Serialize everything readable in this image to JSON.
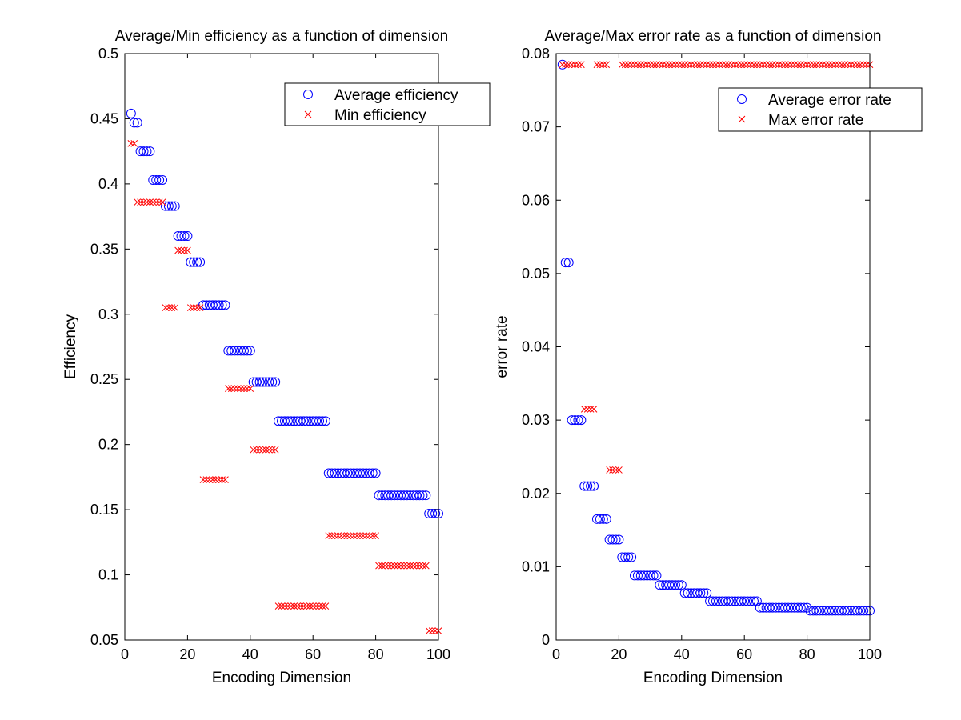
{
  "chart_data": [
    {
      "type": "scatter",
      "title": "Average/Min efficiency as a function of dimension",
      "xlabel": "Encoding Dimension",
      "ylabel": "Efficiency",
      "xlim": [
        0,
        100
      ],
      "ylim": [
        0.05,
        0.5
      ],
      "xticks": [
        0,
        20,
        40,
        60,
        80,
        100
      ],
      "xtick_labels": [
        "0",
        "20",
        "40",
        "60",
        "80",
        "100"
      ],
      "yticks": [
        0.05,
        0.1,
        0.15,
        0.2,
        0.25,
        0.3,
        0.35,
        0.4,
        0.45,
        0.5
      ],
      "ytick_labels": [
        "0.05",
        "0.1",
        "0.15",
        "0.2",
        "0.25",
        "0.3",
        "0.35",
        "0.4",
        "0.45",
        "0.5"
      ],
      "grid": false,
      "legend_position": "top-right",
      "series": [
        {
          "name": "Average efficiency",
          "marker": "circle",
          "color": "#0000ff",
          "x": [
            2,
            3,
            4,
            5,
            6,
            7,
            8,
            9,
            10,
            11,
            12,
            13,
            14,
            15,
            16,
            17,
            18,
            19,
            20,
            21,
            22,
            23,
            24,
            25,
            26,
            27,
            28,
            29,
            30,
            31,
            32,
            33,
            34,
            35,
            36,
            37,
            38,
            39,
            40,
            41,
            42,
            43,
            44,
            45,
            46,
            47,
            48,
            49,
            50,
            51,
            52,
            53,
            54,
            55,
            56,
            57,
            58,
            59,
            60,
            61,
            62,
            63,
            64,
            65,
            66,
            67,
            68,
            69,
            70,
            71,
            72,
            73,
            74,
            75,
            76,
            77,
            78,
            79,
            80,
            81,
            82,
            83,
            84,
            85,
            86,
            87,
            88,
            89,
            90,
            91,
            92,
            93,
            94,
            95,
            96,
            97,
            98,
            99,
            100
          ],
          "y": [
            0.454,
            0.447,
            0.447,
            0.425,
            0.425,
            0.425,
            0.425,
            0.403,
            0.403,
            0.403,
            0.403,
            0.383,
            0.383,
            0.383,
            0.383,
            0.36,
            0.36,
            0.36,
            0.36,
            0.34,
            0.34,
            0.34,
            0.34,
            0.307,
            0.307,
            0.307,
            0.307,
            0.307,
            0.307,
            0.307,
            0.307,
            0.272,
            0.272,
            0.272,
            0.272,
            0.272,
            0.272,
            0.272,
            0.272,
            0.248,
            0.248,
            0.248,
            0.248,
            0.248,
            0.248,
            0.248,
            0.248,
            0.218,
            0.218,
            0.218,
            0.218,
            0.218,
            0.218,
            0.218,
            0.218,
            0.218,
            0.218,
            0.218,
            0.218,
            0.218,
            0.218,
            0.218,
            0.218,
            0.178,
            0.178,
            0.178,
            0.178,
            0.178,
            0.178,
            0.178,
            0.178,
            0.178,
            0.178,
            0.178,
            0.178,
            0.178,
            0.178,
            0.178,
            0.178,
            0.161,
            0.161,
            0.161,
            0.161,
            0.161,
            0.161,
            0.161,
            0.161,
            0.161,
            0.161,
            0.161,
            0.161,
            0.161,
            0.161,
            0.161,
            0.161,
            0.147,
            0.147,
            0.147,
            0.147
          ]
        },
        {
          "name": "Min efficiency",
          "marker": "x",
          "color": "#ff0000",
          "x": [
            2,
            3,
            4,
            5,
            6,
            7,
            8,
            9,
            10,
            11,
            12,
            13,
            14,
            15,
            16,
            17,
            18,
            19,
            20,
            21,
            22,
            23,
            24,
            25,
            26,
            27,
            28,
            29,
            30,
            31,
            32,
            33,
            34,
            35,
            36,
            37,
            38,
            39,
            40,
            41,
            42,
            43,
            44,
            45,
            46,
            47,
            48,
            49,
            50,
            51,
            52,
            53,
            54,
            55,
            56,
            57,
            58,
            59,
            60,
            61,
            62,
            63,
            64,
            65,
            66,
            67,
            68,
            69,
            70,
            71,
            72,
            73,
            74,
            75,
            76,
            77,
            78,
            79,
            80,
            81,
            82,
            83,
            84,
            85,
            86,
            87,
            88,
            89,
            90,
            91,
            92,
            93,
            94,
            95,
            96,
            97,
            98,
            99,
            100
          ],
          "y": [
            0.431,
            0.431,
            0.386,
            0.386,
            0.386,
            0.386,
            0.386,
            0.386,
            0.386,
            0.386,
            0.386,
            0.305,
            0.305,
            0.305,
            0.305,
            0.349,
            0.349,
            0.349,
            0.349,
            0.305,
            0.305,
            0.305,
            0.305,
            0.173,
            0.173,
            0.173,
            0.173,
            0.173,
            0.173,
            0.173,
            0.173,
            0.243,
            0.243,
            0.243,
            0.243,
            0.243,
            0.243,
            0.243,
            0.243,
            0.196,
            0.196,
            0.196,
            0.196,
            0.196,
            0.196,
            0.196,
            0.196,
            0.076,
            0.076,
            0.076,
            0.076,
            0.076,
            0.076,
            0.076,
            0.076,
            0.076,
            0.076,
            0.076,
            0.076,
            0.076,
            0.076,
            0.076,
            0.076,
            0.13,
            0.13,
            0.13,
            0.13,
            0.13,
            0.13,
            0.13,
            0.13,
            0.13,
            0.13,
            0.13,
            0.13,
            0.13,
            0.13,
            0.13,
            0.13,
            0.107,
            0.107,
            0.107,
            0.107,
            0.107,
            0.107,
            0.107,
            0.107,
            0.107,
            0.107,
            0.107,
            0.107,
            0.107,
            0.107,
            0.107,
            0.107,
            0.057,
            0.057,
            0.057,
            0.057
          ]
        }
      ]
    },
    {
      "type": "scatter",
      "title": "Average/Max error rate as a function of dimension",
      "xlabel": "Encoding Dimension",
      "ylabel": "error rate",
      "xlim": [
        0,
        100
      ],
      "ylim": [
        0,
        0.08
      ],
      "xticks": [
        0,
        20,
        40,
        60,
        80,
        100
      ],
      "xtick_labels": [
        "0",
        "20",
        "40",
        "60",
        "80",
        "100"
      ],
      "yticks": [
        0,
        0.01,
        0.02,
        0.03,
        0.04,
        0.05,
        0.06,
        0.07,
        0.08
      ],
      "ytick_labels": [
        "0",
        "0.01",
        "0.02",
        "0.03",
        "0.04",
        "0.05",
        "0.06",
        "0.07",
        "0.08"
      ],
      "grid": false,
      "legend_position": "top-right",
      "series": [
        {
          "name": "Average error rate",
          "marker": "circle",
          "color": "#0000ff",
          "x": [
            2,
            3,
            4,
            5,
            6,
            7,
            8,
            9,
            10,
            11,
            12,
            13,
            14,
            15,
            16,
            17,
            18,
            19,
            20,
            21,
            22,
            23,
            24,
            25,
            26,
            27,
            28,
            29,
            30,
            31,
            32,
            33,
            34,
            35,
            36,
            37,
            38,
            39,
            40,
            41,
            42,
            43,
            44,
            45,
            46,
            47,
            48,
            49,
            50,
            51,
            52,
            53,
            54,
            55,
            56,
            57,
            58,
            59,
            60,
            61,
            62,
            63,
            64,
            65,
            66,
            67,
            68,
            69,
            70,
            71,
            72,
            73,
            74,
            75,
            76,
            77,
            78,
            79,
            80,
            81,
            82,
            83,
            84,
            85,
            86,
            87,
            88,
            89,
            90,
            91,
            92,
            93,
            94,
            95,
            96,
            97,
            98,
            99,
            100
          ],
          "y": [
            0.0785,
            0.0515,
            0.0515,
            0.03,
            0.03,
            0.03,
            0.03,
            0.021,
            0.021,
            0.021,
            0.021,
            0.0165,
            0.0165,
            0.0165,
            0.0165,
            0.0137,
            0.0137,
            0.0137,
            0.0137,
            0.0113,
            0.0113,
            0.0113,
            0.0113,
            0.0088,
            0.0088,
            0.0088,
            0.0088,
            0.0088,
            0.0088,
            0.0088,
            0.0088,
            0.0075,
            0.0075,
            0.0075,
            0.0075,
            0.0075,
            0.0075,
            0.0075,
            0.0075,
            0.0064,
            0.0064,
            0.0064,
            0.0064,
            0.0064,
            0.0064,
            0.0064,
            0.0064,
            0.0053,
            0.0053,
            0.0053,
            0.0053,
            0.0053,
            0.0053,
            0.0053,
            0.0053,
            0.0053,
            0.0053,
            0.0053,
            0.0053,
            0.0053,
            0.0053,
            0.0053,
            0.0053,
            0.0044,
            0.0044,
            0.0044,
            0.0044,
            0.0044,
            0.0044,
            0.0044,
            0.0044,
            0.0044,
            0.0044,
            0.0044,
            0.0044,
            0.0044,
            0.0044,
            0.0044,
            0.0044,
            0.004,
            0.004,
            0.004,
            0.004,
            0.004,
            0.004,
            0.004,
            0.004,
            0.004,
            0.004,
            0.004,
            0.004,
            0.004,
            0.004,
            0.004,
            0.004,
            0.004,
            0.004,
            0.004,
            0.004
          ]
        },
        {
          "name": "Max error rate",
          "marker": "x",
          "color": "#ff0000",
          "x": [
            2,
            3,
            4,
            5,
            6,
            7,
            8,
            9,
            10,
            11,
            12,
            13,
            14,
            15,
            16,
            17,
            18,
            19,
            20,
            21,
            22,
            23,
            24,
            25,
            26,
            27,
            28,
            29,
            30,
            31,
            32,
            33,
            34,
            35,
            36,
            37,
            38,
            39,
            40,
            41,
            42,
            43,
            44,
            45,
            46,
            47,
            48,
            49,
            50,
            51,
            52,
            53,
            54,
            55,
            56,
            57,
            58,
            59,
            60,
            61,
            62,
            63,
            64,
            65,
            66,
            67,
            68,
            69,
            70,
            71,
            72,
            73,
            74,
            75,
            76,
            77,
            78,
            79,
            80,
            81,
            82,
            83,
            84,
            85,
            86,
            87,
            88,
            89,
            90,
            91,
            92,
            93,
            94,
            95,
            96,
            97,
            98,
            99,
            100
          ],
          "y": [
            0.0785,
            0.0785,
            0.0785,
            0.0785,
            0.0785,
            0.0785,
            0.0785,
            0.0315,
            0.0315,
            0.0315,
            0.0315,
            0.0785,
            0.0785,
            0.0785,
            0.0785,
            0.0232,
            0.0232,
            0.0232,
            0.0232,
            0.0785,
            0.0785,
            0.0785,
            0.0785,
            0.0785,
            0.0785,
            0.0785,
            0.0785,
            0.0785,
            0.0785,
            0.0785,
            0.0785,
            0.0785,
            0.0785,
            0.0785,
            0.0785,
            0.0785,
            0.0785,
            0.0785,
            0.0785,
            0.0785,
            0.0785,
            0.0785,
            0.0785,
            0.0785,
            0.0785,
            0.0785,
            0.0785,
            0.0785,
            0.0785,
            0.0785,
            0.0785,
            0.0785,
            0.0785,
            0.0785,
            0.0785,
            0.0785,
            0.0785,
            0.0785,
            0.0785,
            0.0785,
            0.0785,
            0.0785,
            0.0785,
            0.0785,
            0.0785,
            0.0785,
            0.0785,
            0.0785,
            0.0785,
            0.0785,
            0.0785,
            0.0785,
            0.0785,
            0.0785,
            0.0785,
            0.0785,
            0.0785,
            0.0785,
            0.0785,
            0.0785,
            0.0785,
            0.0785,
            0.0785,
            0.0785,
            0.0785,
            0.0785,
            0.0785,
            0.0785,
            0.0785,
            0.0785,
            0.0785,
            0.0785,
            0.0785,
            0.0785,
            0.0785,
            0.0785,
            0.0785,
            0.0785,
            0.0785
          ]
        }
      ]
    }
  ]
}
